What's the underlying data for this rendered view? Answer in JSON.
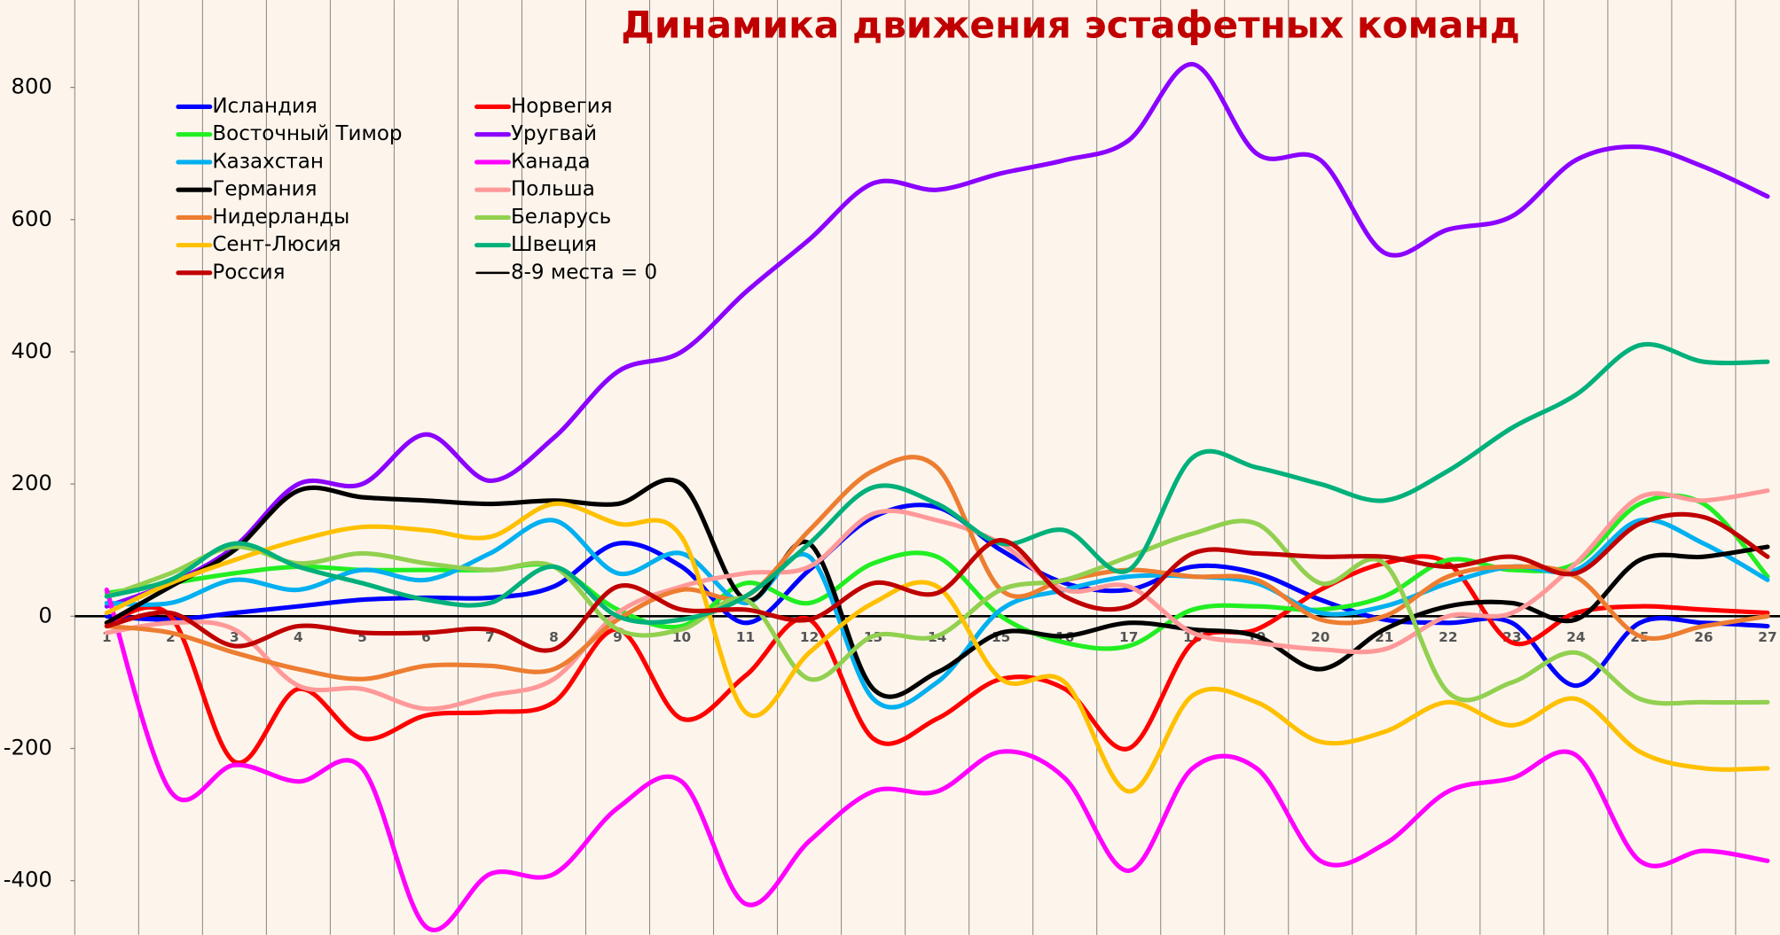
{
  "chart_data": {
    "type": "line",
    "title": "Динамика движения эстафетных команд",
    "categories": [
      "1",
      "2",
      "3",
      "4",
      "5",
      "6",
      "7",
      "8",
      "9",
      "10",
      "11",
      "12",
      "13",
      "14",
      "15",
      "16",
      "17",
      "18",
      "19",
      "20",
      "21",
      "22",
      "23",
      "24",
      "25",
      "26",
      "27"
    ],
    "ylim": [
      -482,
      932
    ],
    "yticks": [
      -400,
      -200,
      0,
      200,
      400,
      600,
      800
    ],
    "series": [
      {
        "name": "Исландия",
        "color": "#0000ff",
        "values": [
          0,
          -5,
          5,
          15,
          25,
          28,
          28,
          45,
          110,
          75,
          -10,
          70,
          150,
          165,
          100,
          50,
          40,
          75,
          65,
          25,
          -5,
          -10,
          -10,
          -105,
          -10,
          -10,
          -15
        ]
      },
      {
        "name": "Норвегия",
        "color": "#ff0000",
        "values": [
          -10,
          0,
          -220,
          -110,
          -185,
          -150,
          -145,
          -130,
          -20,
          -155,
          -90,
          -5,
          -185,
          -155,
          -95,
          -110,
          -200,
          -40,
          -20,
          40,
          80,
          80,
          -40,
          5,
          15,
          10,
          5
        ]
      },
      {
        "name": "Восточный Тимор",
        "color": "#22ee22",
        "values": [
          35,
          50,
          65,
          75,
          70,
          70,
          70,
          75,
          10,
          -15,
          50,
          20,
          80,
          90,
          0,
          -40,
          -45,
          10,
          15,
          10,
          30,
          85,
          70,
          80,
          170,
          170,
          60
        ]
      },
      {
        "name": "Уругвай",
        "color": "#8b00ff",
        "values": [
          15,
          50,
          105,
          200,
          200,
          275,
          205,
          270,
          370,
          400,
          490,
          570,
          655,
          645,
          670,
          690,
          720,
          835,
          700,
          690,
          550,
          585,
          605,
          690,
          710,
          680,
          635
        ]
      },
      {
        "name": "Казахстан",
        "color": "#00b0f0",
        "values": [
          20,
          20,
          55,
          40,
          70,
          55,
          95,
          145,
          65,
          95,
          20,
          90,
          -125,
          -100,
          10,
          40,
          60,
          60,
          50,
          5,
          15,
          50,
          75,
          70,
          145,
          110,
          55
        ]
      },
      {
        "name": "Канада",
        "color": "#ff00ff",
        "values": [
          40,
          -265,
          -225,
          -250,
          -230,
          -470,
          -390,
          -390,
          -290,
          -250,
          -435,
          -340,
          -265,
          -265,
          -205,
          -245,
          -385,
          -230,
          -230,
          -370,
          -345,
          -265,
          -245,
          -210,
          -370,
          -355,
          -370
        ]
      },
      {
        "name": "Германия",
        "color": "#000000",
        "values": [
          -10,
          45,
          100,
          190,
          180,
          175,
          170,
          175,
          170,
          200,
          25,
          110,
          -110,
          -85,
          -25,
          -30,
          -10,
          -20,
          -30,
          -80,
          -20,
          15,
          20,
          -5,
          85,
          90,
          105
        ]
      },
      {
        "name": "Польша",
        "color": "#ff9999",
        "values": [
          -25,
          -10,
          -20,
          -105,
          -110,
          -140,
          -120,
          -95,
          5,
          45,
          65,
          75,
          155,
          145,
          110,
          40,
          45,
          -25,
          -40,
          -50,
          -50,
          0,
          5,
          80,
          180,
          175,
          190
        ]
      },
      {
        "name": "Нидерланды",
        "color": "#ed7d31",
        "values": [
          -15,
          -25,
          -55,
          -80,
          -95,
          -75,
          -75,
          -80,
          -5,
          40,
          30,
          130,
          220,
          225,
          40,
          55,
          70,
          60,
          55,
          -5,
          0,
          60,
          75,
          60,
          -30,
          -15,
          0
        ]
      },
      {
        "name": "Беларусь",
        "color": "#92d050",
        "values": [
          30,
          65,
          105,
          80,
          95,
          80,
          70,
          75,
          -20,
          -20,
          25,
          -95,
          -30,
          -30,
          40,
          55,
          90,
          125,
          140,
          50,
          80,
          -115,
          -100,
          -55,
          -125,
          -130,
          -130
        ]
      },
      {
        "name": "Сент-Люсия",
        "color": "#ffc000",
        "values": [
          5,
          50,
          85,
          115,
          135,
          130,
          120,
          170,
          140,
          120,
          -145,
          -55,
          20,
          45,
          -95,
          -100,
          -265,
          -120,
          -130,
          -190,
          -175,
          -130,
          -165,
          -125,
          -205,
          -230,
          -230
        ]
      },
      {
        "name": "Швеция",
        "color": "#00b07a",
        "values": [
          30,
          55,
          110,
          75,
          50,
          25,
          20,
          75,
          0,
          -5,
          30,
          110,
          195,
          170,
          110,
          130,
          70,
          240,
          225,
          200,
          175,
          220,
          285,
          335,
          410,
          385,
          385
        ]
      },
      {
        "name": "Россия",
        "color": "#c00000",
        "values": [
          -15,
          5,
          -45,
          -15,
          -25,
          -25,
          -20,
          -50,
          45,
          10,
          10,
          -5,
          50,
          35,
          115,
          30,
          15,
          95,
          95,
          90,
          90,
          75,
          90,
          65,
          140,
          150,
          90
        ]
      }
    ],
    "reference_line": {
      "name": "8-9 места = 0",
      "value": 0,
      "color": "#000000"
    }
  }
}
